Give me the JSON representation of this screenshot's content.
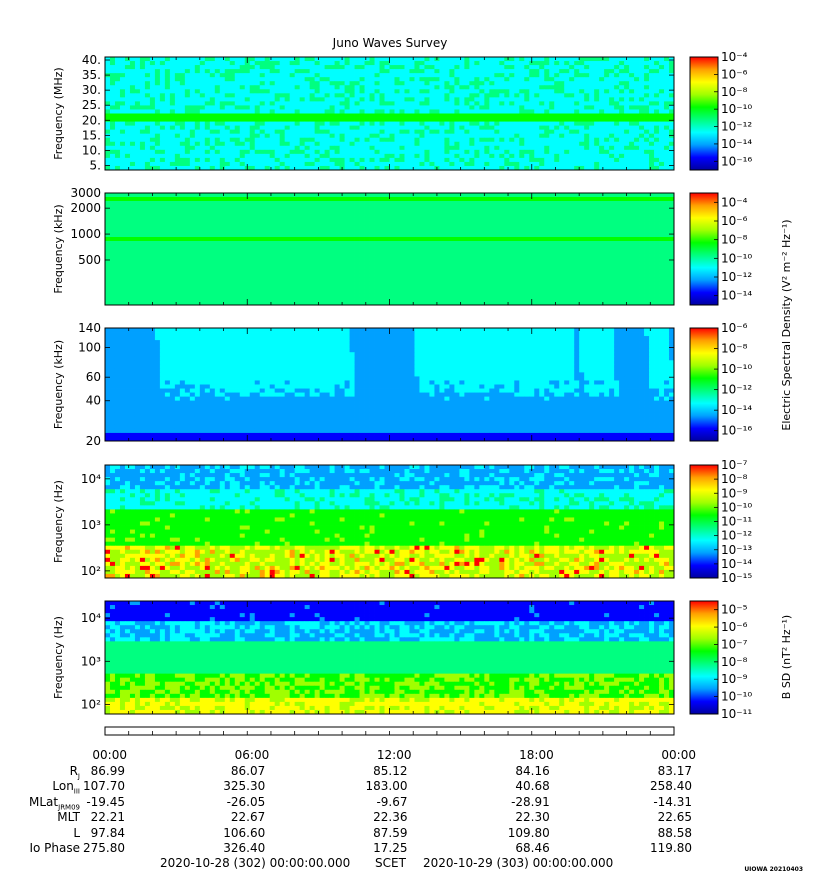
{
  "title": "Juno Waves Survey",
  "stamp": "UIOWA 20210403",
  "colors": {
    "stops": [
      "#0000a0",
      "#0000ff",
      "#00a0ff",
      "#00ffff",
      "#00ff80",
      "#00ff00",
      "#a0ff00",
      "#ffff00",
      "#ffa000",
      "#ff0000"
    ]
  },
  "colorbar_labels": {
    "e_field": "Electric Spectral Density (V² m⁻² Hz⁻¹)",
    "b_field": "B SD (nT² Hz⁻¹)"
  },
  "chart_data": [
    {
      "type": "heatmap",
      "name": "panel-1",
      "ylabel": "Frequency (MHz)",
      "yscale": "linear",
      "ylim": [
        3.5,
        41
      ],
      "yticks": [
        "40.",
        "35.",
        "30.",
        "25.",
        "20.",
        "15.",
        "10.",
        "5."
      ],
      "ytick_values": [
        40,
        35,
        30,
        25,
        20,
        15,
        10,
        5
      ],
      "colorbar_ticks": [
        "10⁻⁴",
        "10⁻⁶",
        "10⁻⁸",
        "10⁻¹⁰",
        "10⁻¹²",
        "10⁻¹⁴",
        "10⁻¹⁶"
      ],
      "colorbar_log_range": [
        -4,
        -17
      ],
      "dominant_level": 0.38,
      "features": "uniform background, enhanced band near 21 MHz"
    },
    {
      "type": "heatmap",
      "name": "panel-2",
      "ylabel": "Frequency (kHz)",
      "yscale": "log",
      "ylim": [
        150,
        3000
      ],
      "yticks": [
        "3000",
        "2000",
        "1000",
        "500"
      ],
      "ytick_values": [
        3000,
        2000,
        1000,
        500
      ],
      "colorbar_ticks": [
        "10⁻⁴",
        "10⁻⁶",
        "10⁻⁸",
        "10⁻¹⁰",
        "10⁻¹²",
        "10⁻¹⁴"
      ],
      "colorbar_log_range": [
        -3,
        -15
      ],
      "dominant_level": 0.48,
      "features": "uniform background, bands near 2.5 MHz and 900 kHz"
    },
    {
      "type": "heatmap",
      "name": "panel-3",
      "ylabel": "Frequency (kHz)",
      "yscale": "log",
      "ylim": [
        20,
        140
      ],
      "yticks": [
        "140",
        "100",
        "60",
        "40",
        "20"
      ],
      "ytick_values": [
        140,
        100,
        60,
        40,
        20
      ],
      "colorbar_ticks": [
        "10⁻⁶",
        "10⁻⁸",
        "10⁻¹⁰",
        "10⁻¹²",
        "10⁻¹⁴",
        "10⁻¹⁶"
      ],
      "colorbar_log_range": [
        -6,
        -17
      ],
      "dominant_level": 0.2,
      "features": "blue background with cyan emission fingers around 04-06 h, 08-10 h, 13-15 h, 16-19 h, 22-23 h"
    },
    {
      "type": "heatmap",
      "name": "panel-4",
      "ylabel": "Frequency (Hz)",
      "yscale": "log",
      "ylim": [
        70,
        20000
      ],
      "yticks": [
        "10⁴",
        "10³",
        "10²"
      ],
      "ytick_values": [
        10000,
        1000,
        100
      ],
      "colorbar_ticks": [
        "10⁻⁷",
        "10⁻⁸",
        "10⁻⁹",
        "10⁻¹⁰",
        "10⁻¹¹",
        "10⁻¹²",
        "10⁻¹³",
        "10⁻¹⁴",
        "10⁻¹⁵"
      ],
      "colorbar_log_range": [
        -7,
        -15
      ],
      "dominant_level": 0.5,
      "features": "green/yellow low-frequency emission below ~5 kHz, red bursts near 100-300 Hz"
    },
    {
      "type": "heatmap",
      "name": "panel-5",
      "ylabel": "Frequency (Hz)",
      "yscale": "log",
      "ylim": [
        60,
        25000
      ],
      "yticks": [
        "10⁴",
        "10³",
        "10²"
      ],
      "ytick_values": [
        10000,
        1000,
        100
      ],
      "colorbar_ticks": [
        "10⁻⁵",
        "10⁻⁶",
        "10⁻⁷",
        "10⁻⁸",
        "10⁻⁹",
        "10⁻¹⁰",
        "10⁻¹¹"
      ],
      "colorbar_log_range": [
        -4.5,
        -11
      ],
      "dominant_level": 0.5,
      "features": "blue at top grading to green/yellow at low frequencies"
    }
  ],
  "time_axis": [
    "00:00",
    "06:00",
    "12:00",
    "18:00",
    "00:00"
  ],
  "ephemeris": {
    "rows": [
      {
        "label": "R",
        "sub": "J",
        "values": [
          "86.99",
          "86.07",
          "85.12",
          "84.16",
          "83.17"
        ]
      },
      {
        "label": "Lon",
        "sub": "III",
        "values": [
          "107.70",
          "325.30",
          "183.00",
          "40.68",
          "258.40"
        ]
      },
      {
        "label": "MLat",
        "sub": "JRM09",
        "values": [
          "-19.45",
          "-26.05",
          "-9.67",
          "-28.91",
          "-14.31"
        ]
      },
      {
        "label": "MLT",
        "sub": "",
        "values": [
          "22.21",
          "22.67",
          "22.36",
          "22.30",
          "22.65"
        ]
      },
      {
        "label": "L",
        "sub": "",
        "values": [
          "97.84",
          "106.60",
          "87.59",
          "109.80",
          "88.58"
        ]
      },
      {
        "label": "Io Phase",
        "sub": "",
        "values": [
          "275.80",
          "326.40",
          "17.25",
          "68.46",
          "119.80"
        ]
      }
    ]
  },
  "footer": {
    "start": "2020-10-28 (302) 00:00:00.000",
    "scet": "SCET",
    "end": "2020-10-29 (303) 00:00:00.000"
  }
}
